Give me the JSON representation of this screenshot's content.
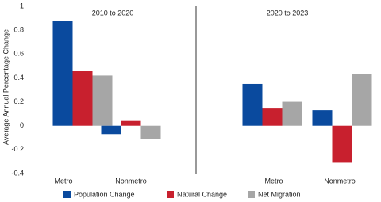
{
  "chart_data": {
    "type": "bar",
    "y_label": "Average Annual Percentage Change",
    "panels": [
      "2010 to 2020",
      "2020 to 2023"
    ],
    "categories": [
      "Metro",
      "Nonmetro",
      "Metro",
      "Nonmetro"
    ],
    "series": [
      {
        "name": "Population Change",
        "color": "#0a4a9e",
        "values": [
          0.88,
          -0.07,
          0.35,
          0.13
        ]
      },
      {
        "name": "Natural Change",
        "color": "#c8202e",
        "values": [
          0.46,
          0.04,
          0.15,
          -0.31
        ]
      },
      {
        "name": "Net Migration",
        "color": "#a6a6a6",
        "values": [
          0.42,
          -0.11,
          0.2,
          0.43
        ]
      }
    ],
    "ylim": [
      -0.4,
      1
    ],
    "yticks": [
      -0.4,
      -0.2,
      0,
      0.2,
      0.4,
      0.6,
      0.8,
      1
    ],
    "grid": false
  }
}
